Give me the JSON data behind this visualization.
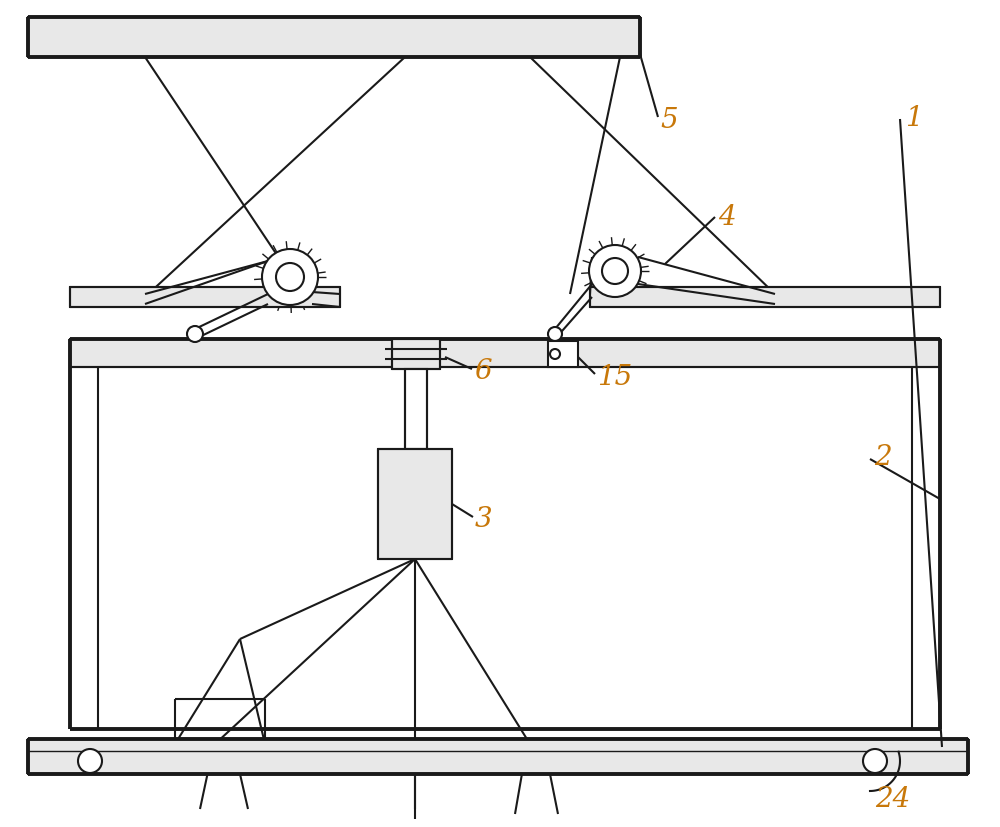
{
  "bg_color": "#ffffff",
  "line_color": "#1a1a1a",
  "label_color": "#c8780a",
  "label_fontsize": 20,
  "line_width": 1.5,
  "thick_line": 2.8,
  "thin_line": 1.0
}
